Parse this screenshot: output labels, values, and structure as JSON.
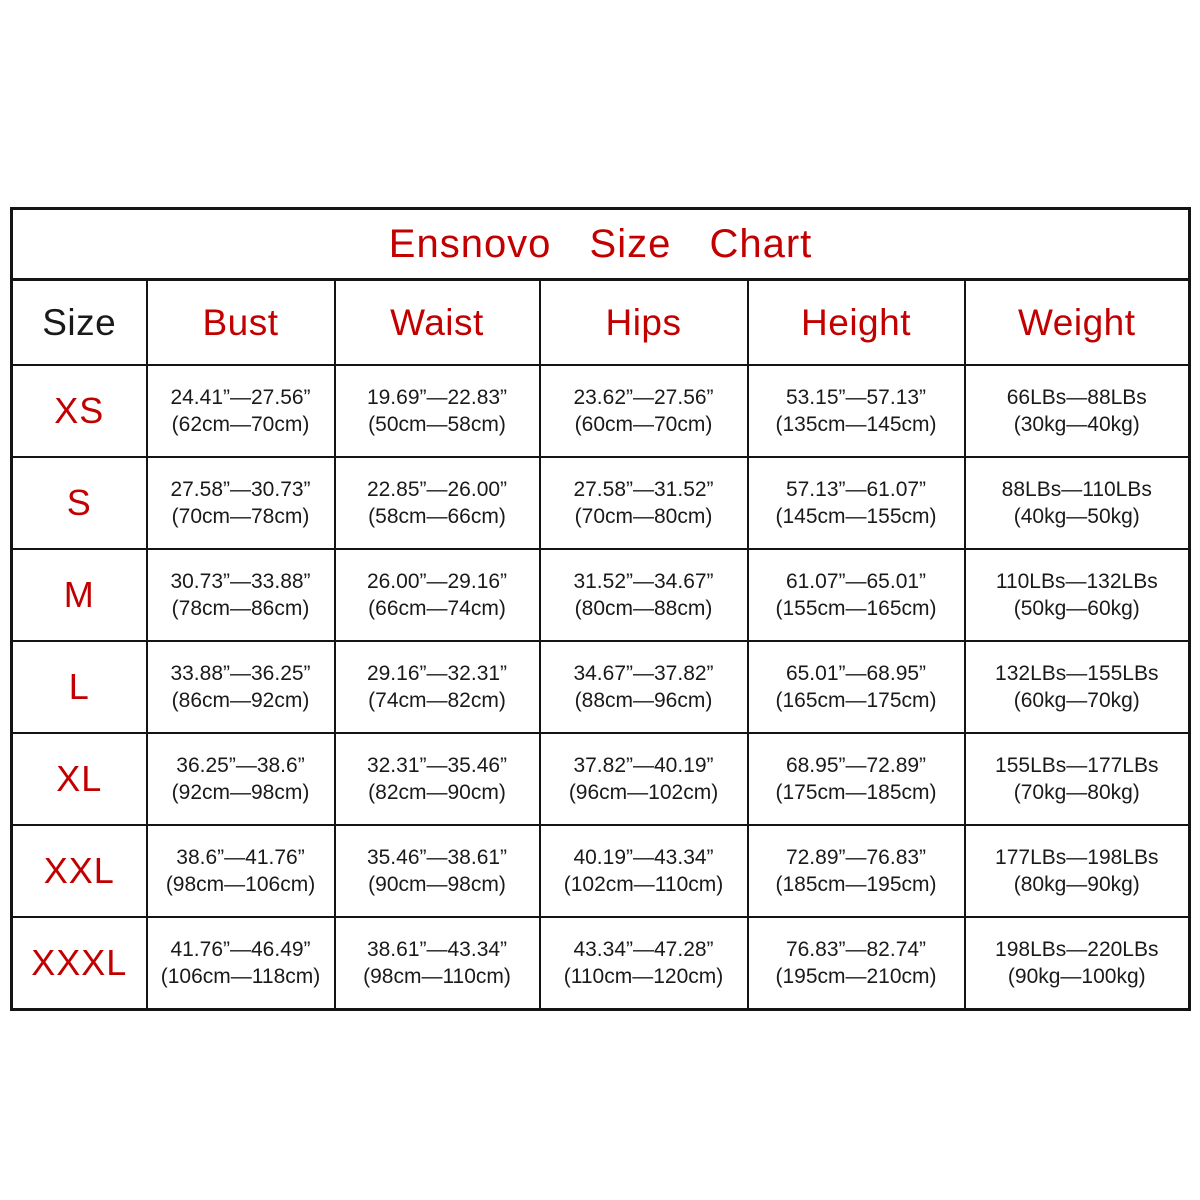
{
  "title": "Ensnovo Size Chart",
  "colors": {
    "accent_red": "#c20000",
    "text_black": "#1a1a1a",
    "border": "#141414",
    "background": "#ffffff"
  },
  "table": {
    "headers": [
      "Size",
      "Bust",
      "Waist",
      "Hips",
      "Height",
      "Weight"
    ],
    "rows": [
      {
        "size": "XS",
        "cells": [
          [
            "24.41”—27.56”",
            "(62cm—70cm)"
          ],
          [
            "19.69”—22.83”",
            "(50cm—58cm)"
          ],
          [
            "23.62”—27.56”",
            "(60cm—70cm)"
          ],
          [
            "53.15”—57.13”",
            "(135cm—145cm)"
          ],
          [
            "66LBs—88LBs",
            "(30kg—40kg)"
          ]
        ]
      },
      {
        "size": "S",
        "cells": [
          [
            "27.58”—30.73”",
            "(70cm—78cm)"
          ],
          [
            "22.85”—26.00”",
            "(58cm—66cm)"
          ],
          [
            "27.58”—31.52”",
            "(70cm—80cm)"
          ],
          [
            "57.13”—61.07”",
            "(145cm—155cm)"
          ],
          [
            "88LBs—110LBs",
            "(40kg—50kg)"
          ]
        ]
      },
      {
        "size": "M",
        "cells": [
          [
            "30.73”—33.88”",
            "(78cm—86cm)"
          ],
          [
            "26.00”—29.16”",
            "(66cm—74cm)"
          ],
          [
            "31.52”—34.67”",
            "(80cm—88cm)"
          ],
          [
            "61.07”—65.01”",
            "(155cm—165cm)"
          ],
          [
            "110LBs—132LBs",
            "(50kg—60kg)"
          ]
        ]
      },
      {
        "size": "L",
        "cells": [
          [
            "33.88”—36.25”",
            "(86cm—92cm)"
          ],
          [
            "29.16”—32.31”",
            "(74cm—82cm)"
          ],
          [
            "34.67”—37.82”",
            "(88cm—96cm)"
          ],
          [
            "65.01”—68.95”",
            "(165cm—175cm)"
          ],
          [
            "132LBs—155LBs",
            "(60kg—70kg)"
          ]
        ]
      },
      {
        "size": "XL",
        "cells": [
          [
            "36.25”—38.6”",
            "(92cm—98cm)"
          ],
          [
            "32.31”—35.46”",
            "(82cm—90cm)"
          ],
          [
            "37.82”—40.19”",
            "(96cm—102cm)"
          ],
          [
            "68.95”—72.89”",
            "(175cm—185cm)"
          ],
          [
            "155LBs—177LBs",
            "(70kg—80kg)"
          ]
        ]
      },
      {
        "size": "XXL",
        "cells": [
          [
            "38.6”—41.76”",
            "(98cm—106cm)"
          ],
          [
            "35.46”—38.61”",
            "(90cm—98cm)"
          ],
          [
            "40.19”—43.34”",
            "(102cm—110cm)"
          ],
          [
            "72.89”—76.83”",
            "(185cm—195cm)"
          ],
          [
            "177LBs—198LBs",
            "(80kg—90kg)"
          ]
        ]
      },
      {
        "size": "XXXL",
        "cells": [
          [
            "41.76”—46.49”",
            "(106cm—118cm)"
          ],
          [
            "38.61”—43.34”",
            "(98cm—110cm)"
          ],
          [
            "43.34”—47.28”",
            "(110cm—120cm)"
          ],
          [
            "76.83”—82.74”",
            "(195cm—210cm)"
          ],
          [
            "198LBs—220LBs",
            "(90kg—100kg)"
          ]
        ]
      }
    ]
  },
  "chart_data": {
    "type": "table",
    "title": "Ensnovo Size Chart",
    "columns": [
      "Size",
      "Bust",
      "Waist",
      "Hips",
      "Height",
      "Weight"
    ],
    "rows": [
      [
        "XS",
        "24.41”—27.56” (62cm—70cm)",
        "19.69”—22.83” (50cm—58cm)",
        "23.62”—27.56” (60cm—70cm)",
        "53.15”—57.13” (135cm—145cm)",
        "66LBs—88LBs (30kg—40kg)"
      ],
      [
        "S",
        "27.58”—30.73” (70cm—78cm)",
        "22.85”—26.00” (58cm—66cm)",
        "27.58”—31.52” (70cm—80cm)",
        "57.13”—61.07” (145cm—155cm)",
        "88LBs—110LBs (40kg—50kg)"
      ],
      [
        "M",
        "30.73”—33.88” (78cm—86cm)",
        "26.00”—29.16” (66cm—74cm)",
        "31.52”—34.67” (80cm—88cm)",
        "61.07”—65.01” (155cm—165cm)",
        "110LBs—132LBs (50kg—60kg)"
      ],
      [
        "L",
        "33.88”—36.25” (86cm—92cm)",
        "29.16”—32.31” (74cm—82cm)",
        "34.67”—37.82” (88cm—96cm)",
        "65.01”—68.95” (165cm—175cm)",
        "132LBs—155LBs (60kg—70kg)"
      ],
      [
        "XL",
        "36.25”—38.6” (92cm—98cm)",
        "32.31”—35.46” (82cm—90cm)",
        "37.82”—40.19” (96cm—102cm)",
        "68.95”—72.89” (175cm—185cm)",
        "155LBs—177LBs (70kg—80kg)"
      ],
      [
        "XXL",
        "38.6”—41.76” (98cm—106cm)",
        "35.46”—38.61” (90cm—98cm)",
        "40.19”—43.34” (102cm—110cm)",
        "72.89”—76.83” (185cm—195cm)",
        "177LBs—198LBs (80kg—90kg)"
      ],
      [
        "XXXL",
        "41.76”—46.49” (106cm—118cm)",
        "38.61”—43.34” (98cm—110cm)",
        "43.34”—47.28” (110cm—120cm)",
        "76.83”—82.74” (195cm—210cm)",
        "198LBs—220LBs (90kg—100kg)"
      ]
    ]
  }
}
